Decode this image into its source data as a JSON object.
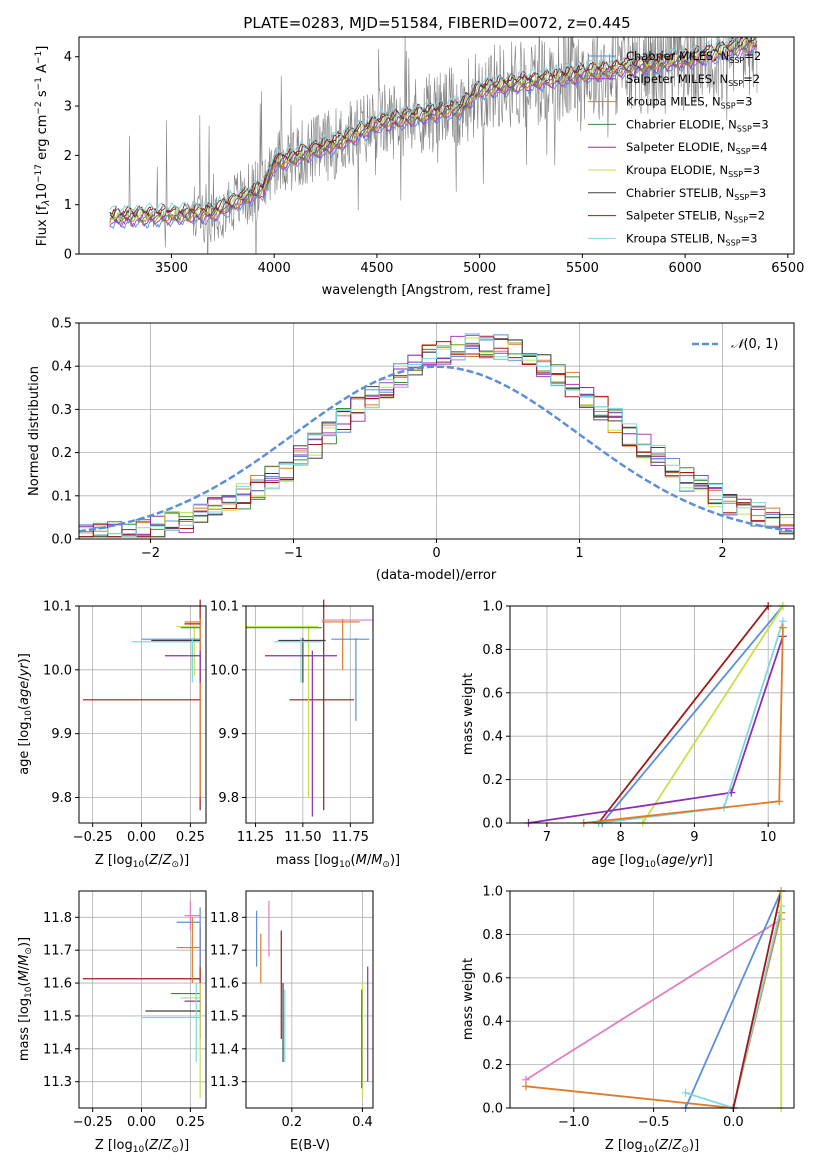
{
  "figure": {
    "title": "PLATE=0283, MJD=51584, FIBERID=0072, z=0.445"
  },
  "colors": {
    "chabrier_miles": "#5b8fd9",
    "salpeter_miles": "#a83fb8",
    "kroupa_miles": "#e07b2a",
    "chabrier_elodie": "#3e8a3e",
    "salpeter_elodie": "#8b2fb5",
    "kroupa_elodie": "#c8e04a",
    "chabrier_stelib": "#404040",
    "salpeter_stelib": "#a01818",
    "kroupa_stelib": "#7fd8e0",
    "pink": "#e07fbf",
    "normal": "#5b8fd9",
    "data": "#808080"
  },
  "chart_data": [
    {
      "type": "line",
      "panel": "spectrum",
      "xlabel": "wavelength [Angstrom, rest frame]",
      "ylabel": "Flux [f_λ 10^-17 erg cm^-2 s^-1 A^-1]",
      "xlim": [
        3050,
        6530
      ],
      "ylim": [
        0,
        4.4
      ],
      "xticks": [
        3500,
        4000,
        4500,
        5000,
        5500,
        6000,
        6500
      ],
      "yticks": [
        0,
        1,
        2,
        3,
        4
      ],
      "grid": false,
      "legend_position": "top-right",
      "legend": [
        {
          "label": "Chabrier MILES, N_SSP=2",
          "key": "chabrier_miles"
        },
        {
          "label": "Salpeter MILES, N_SSP=2",
          "key": "salpeter_miles"
        },
        {
          "label": "Kroupa MILES, N_SSP=3",
          "key": "kroupa_miles"
        },
        {
          "label": "Chabrier ELODIE, N_SSP=3",
          "key": "chabrier_elodie"
        },
        {
          "label": "Salpeter ELODIE, N_SSP=4",
          "key": "salpeter_elodie"
        },
        {
          "label": "Kroupa ELODIE, N_SSP=3",
          "key": "kroupa_elodie"
        },
        {
          "label": "Chabrier STELIB, N_SSP=3",
          "key": "chabrier_stelib"
        },
        {
          "label": "Salpeter STELIB, N_SSP=2",
          "key": "salpeter_stelib"
        },
        {
          "label": "Kroupa STELIB, N_SSP=3",
          "key": "kroupa_stelib"
        }
      ],
      "continuum": {
        "x": [
          3200,
          3500,
          3700,
          3950,
          4000,
          4300,
          4500,
          4800,
          4900,
          5000,
          5400,
          5800,
          6000,
          6350
        ],
        "y": [
          0.75,
          0.8,
          0.85,
          1.35,
          1.85,
          2.25,
          2.65,
          2.9,
          2.95,
          3.35,
          3.6,
          3.85,
          3.95,
          4.3
        ]
      }
    },
    {
      "type": "line",
      "panel": "residual_histogram",
      "xlabel": "(data-model)/error",
      "ylabel": "Normed distribution",
      "xlim": [
        -2.5,
        2.5
      ],
      "ylim": [
        0,
        0.5
      ],
      "xticks": [
        -2,
        -1,
        0,
        1,
        2
      ],
      "yticks": [
        0.0,
        0.1,
        0.2,
        0.3,
        0.4,
        0.5
      ],
      "grid": true,
      "legend_position": "top-right",
      "legend_label": "N(0,1)",
      "normal_mean": 0,
      "normal_sigma": 1
    },
    {
      "type": "scatter",
      "panel": "age_vs_Z",
      "xlabel": "Z [log10(Z/Z_sun)]",
      "ylabel": "age  [log10(age/yr)]",
      "xlim": [
        -0.32,
        0.33
      ],
      "ylim": [
        9.76,
        10.1
      ],
      "xticks": [
        -0.25,
        0.0,
        0.25
      ],
      "yticks": [
        9.8,
        9.9,
        10.0,
        10.1
      ],
      "grid": true
    },
    {
      "type": "scatter",
      "panel": "age_vs_mass",
      "xlabel": "mass [log10(M/M_sun)]",
      "xlim": [
        11.2,
        11.87
      ],
      "ylim": [
        9.76,
        10.1
      ],
      "xticks": [
        11.25,
        11.5,
        11.75
      ],
      "yticks": [
        9.8,
        9.9,
        10.0,
        10.1
      ],
      "grid": true
    },
    {
      "type": "line",
      "panel": "massweight_vs_age",
      "xlabel": "age  [log10(age/yr)]",
      "ylabel": "mass weight",
      "xlim": [
        6.5,
        10.35
      ],
      "ylim": [
        0,
        1
      ],
      "xticks": [
        7,
        8,
        9,
        10
      ],
      "yticks": [
        0.0,
        0.2,
        0.4,
        0.6,
        0.8,
        1.0
      ],
      "grid": true,
      "series": [
        {
          "key": "salpeter_stelib",
          "x": [
            7.7,
            10.0
          ],
          "y": [
            0.0,
            1.0
          ]
        },
        {
          "key": "chabrier_miles",
          "x": [
            7.75,
            10.2
          ],
          "y": [
            0.0,
            1.0
          ]
        },
        {
          "key": "kroupa_elodie",
          "x": [
            8.3,
            10.2
          ],
          "y": [
            0.0,
            1.0
          ]
        },
        {
          "key": "salpeter_elodie",
          "x": [
            6.75,
            9.5,
            10.2
          ],
          "y": [
            0.0,
            0.14,
            0.86
          ]
        },
        {
          "key": "kroupa_stelib",
          "x": [
            7.7,
            9.4,
            10.2
          ],
          "y": [
            0.0,
            0.07,
            0.93
          ]
        },
        {
          "key": "kroupa_miles",
          "x": [
            7.5,
            10.15,
            10.2
          ],
          "y": [
            0.0,
            0.1,
            0.9
          ]
        }
      ]
    },
    {
      "type": "scatter",
      "panel": "mass_vs_Z",
      "xlabel": "Z [log10(Z/Z_sun)]",
      "ylabel": "mass [log10(M/M_sun)]",
      "xlim": [
        -0.32,
        0.33
      ],
      "ylim": [
        11.22,
        11.88
      ],
      "xticks": [
        -0.25,
        0.0,
        0.25
      ],
      "yticks": [
        11.3,
        11.4,
        11.5,
        11.6,
        11.7,
        11.8
      ],
      "grid": true
    },
    {
      "type": "scatter",
      "panel": "mass_vs_ebv",
      "xlabel": "E(B-V)",
      "xlim": [
        0.07,
        0.43
      ],
      "ylim": [
        11.22,
        11.88
      ],
      "xticks": [
        0.2,
        0.4
      ],
      "yticks": [
        11.3,
        11.4,
        11.5,
        11.6,
        11.7,
        11.8
      ],
      "grid": true
    },
    {
      "type": "line",
      "panel": "massweight_vs_Z",
      "xlabel": "Z [log10(Z/Z_sun)]",
      "ylabel": "mass weight",
      "xlim": [
        -1.4,
        0.38
      ],
      "ylim": [
        0,
        1
      ],
      "xticks": [
        -1.0,
        -0.5,
        0.0
      ],
      "yticks": [
        0.0,
        0.2,
        0.4,
        0.6,
        0.8,
        1.0
      ],
      "grid": true,
      "series": [
        {
          "key": "pink",
          "x": [
            -1.3,
            0.3
          ],
          "y": [
            0.13,
            0.87
          ]
        },
        {
          "key": "kroupa_miles",
          "x": [
            -1.3,
            0.0,
            0.3
          ],
          "y": [
            0.1,
            0.0,
            0.9
          ]
        },
        {
          "key": "chabrier_miles",
          "x": [
            -0.3,
            0.3
          ],
          "y": [
            0.0,
            1.0
          ]
        },
        {
          "key": "kroupa_stelib",
          "x": [
            -0.3,
            0.0,
            0.3
          ],
          "y": [
            0.07,
            0.0,
            0.93
          ]
        },
        {
          "key": "salpeter_stelib",
          "x": [
            0.0,
            0.3
          ],
          "y": [
            0.0,
            1.0
          ]
        },
        {
          "key": "kroupa_elodie",
          "x": [
            0.3,
            0.3
          ],
          "y": [
            0.0,
            1.0
          ]
        }
      ]
    }
  ]
}
